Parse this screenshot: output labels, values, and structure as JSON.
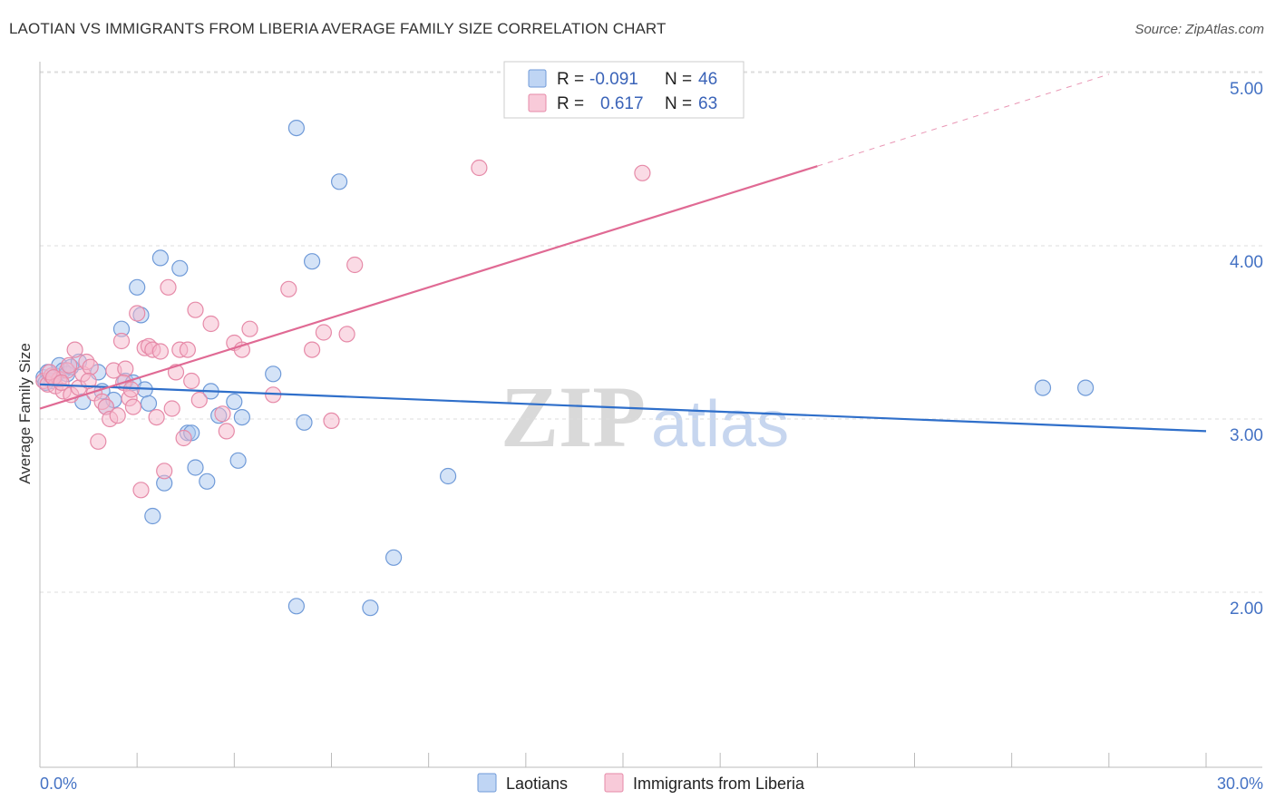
{
  "title": "LAOTIAN VS IMMIGRANTS FROM LIBERIA AVERAGE FAMILY SIZE CORRELATION CHART",
  "source": "Source: ZipAtlas.com",
  "watermark": {
    "zip": "ZIP",
    "atlas": "atlas"
  },
  "colors": {
    "laotians_fill": "#aac7f0",
    "laotians_stroke": "#6f9ad8",
    "laotians_line": "#2f6fca",
    "liberia_fill": "#f5b8cc",
    "liberia_stroke": "#e68aa8",
    "liberia_line": "#e06a94",
    "grid": "#dddddd",
    "tick_label": "#4472c4"
  },
  "legend": {
    "row1": {
      "r_label": "R =",
      "r_value": "-0.091",
      "n_label": "N =",
      "n_value": "46"
    },
    "row2": {
      "r_label": "R =",
      "r_value": "0.617",
      "n_label": "N =",
      "n_value": "63"
    }
  },
  "chart_data": {
    "type": "scatter",
    "title": "LAOTIAN VS IMMIGRANTS FROM LIBERIA AVERAGE FAMILY SIZE CORRELATION CHART",
    "xlabel": "",
    "ylabel": "Average Family Size",
    "xlim": [
      0,
      30
    ],
    "ylim": [
      1.0,
      5.1
    ],
    "x_tick_labels": [
      {
        "value": 0,
        "label": "0.0%"
      },
      {
        "value": 30,
        "label": "30.0%"
      }
    ],
    "y_ticks": [
      {
        "value": 2.0,
        "label": "2.00"
      },
      {
        "value": 3.0,
        "label": "3.00"
      },
      {
        "value": 4.0,
        "label": "4.00"
      },
      {
        "value": 5.0,
        "label": "5.00"
      }
    ],
    "legend_position": "top-center",
    "series": [
      {
        "name": "Laotians",
        "r": -0.091,
        "n": 46,
        "trend": {
          "x0": 0.0,
          "y0": 3.2,
          "x1": 30.0,
          "y1": 2.93
        },
        "points": [
          [
            0.1,
            3.24
          ],
          [
            0.2,
            3.27
          ],
          [
            0.3,
            3.22
          ],
          [
            0.4,
            3.25
          ],
          [
            0.5,
            3.31
          ],
          [
            0.6,
            3.28
          ],
          [
            0.7,
            3.26
          ],
          [
            0.8,
            3.3
          ],
          [
            1.0,
            3.33
          ],
          [
            1.1,
            3.1
          ],
          [
            1.5,
            3.27
          ],
          [
            1.6,
            3.16
          ],
          [
            1.7,
            3.07
          ],
          [
            1.9,
            3.11
          ],
          [
            2.1,
            3.52
          ],
          [
            2.2,
            3.22
          ],
          [
            2.4,
            3.21
          ],
          [
            2.5,
            3.76
          ],
          [
            2.6,
            3.6
          ],
          [
            2.7,
            3.17
          ],
          [
            2.8,
            3.09
          ],
          [
            2.9,
            2.44
          ],
          [
            3.1,
            3.93
          ],
          [
            3.2,
            2.63
          ],
          [
            3.6,
            3.87
          ],
          [
            3.8,
            2.92
          ],
          [
            3.9,
            2.92
          ],
          [
            4.0,
            2.72
          ],
          [
            4.3,
            2.64
          ],
          [
            4.4,
            3.16
          ],
          [
            4.6,
            3.02
          ],
          [
            5.0,
            3.1
          ],
          [
            5.1,
            2.76
          ],
          [
            5.2,
            3.01
          ],
          [
            6.0,
            3.26
          ],
          [
            6.6,
            4.68
          ],
          [
            6.6,
            1.92
          ],
          [
            6.8,
            2.98
          ],
          [
            7.0,
            3.91
          ],
          [
            7.7,
            4.37
          ],
          [
            8.5,
            1.91
          ],
          [
            9.1,
            2.2
          ],
          [
            10.5,
            2.67
          ],
          [
            25.8,
            3.18
          ],
          [
            26.9,
            3.18
          ],
          [
            0.15,
            3.21
          ]
        ]
      },
      {
        "name": "Immigrants from Liberia",
        "r": 0.617,
        "n": 63,
        "trend": {
          "x0": 0.0,
          "y0": 3.06,
          "x1": 20.0,
          "y1": 4.46
        },
        "trend_dashed": {
          "x0": 20.0,
          "y0": 4.46,
          "x1": 27.5,
          "y1": 4.99
        },
        "points": [
          [
            0.1,
            3.22
          ],
          [
            0.2,
            3.2
          ],
          [
            0.3,
            3.25
          ],
          [
            0.4,
            3.19
          ],
          [
            0.5,
            3.23
          ],
          [
            0.6,
            3.16
          ],
          [
            0.7,
            3.28
          ],
          [
            0.8,
            3.14
          ],
          [
            0.9,
            3.4
          ],
          [
            1.0,
            3.18
          ],
          [
            1.1,
            3.26
          ],
          [
            1.2,
            3.33
          ],
          [
            1.3,
            3.3
          ],
          [
            1.4,
            3.15
          ],
          [
            1.5,
            2.87
          ],
          [
            1.6,
            3.1
          ],
          [
            1.7,
            3.07
          ],
          [
            1.8,
            3.0
          ],
          [
            1.9,
            3.28
          ],
          [
            2.0,
            3.02
          ],
          [
            2.1,
            3.45
          ],
          [
            2.2,
            3.29
          ],
          [
            2.3,
            3.12
          ],
          [
            2.4,
            3.07
          ],
          [
            2.5,
            3.61
          ],
          [
            2.6,
            2.59
          ],
          [
            2.7,
            3.41
          ],
          [
            2.8,
            3.42
          ],
          [
            2.9,
            3.4
          ],
          [
            3.0,
            3.01
          ],
          [
            3.1,
            3.39
          ],
          [
            3.2,
            2.7
          ],
          [
            3.3,
            3.76
          ],
          [
            3.4,
            3.06
          ],
          [
            3.5,
            3.27
          ],
          [
            3.6,
            3.4
          ],
          [
            3.7,
            2.89
          ],
          [
            3.8,
            3.4
          ],
          [
            3.9,
            3.22
          ],
          [
            4.0,
            3.63
          ],
          [
            4.1,
            3.11
          ],
          [
            4.4,
            3.55
          ],
          [
            4.7,
            3.03
          ],
          [
            4.8,
            2.93
          ],
          [
            5.0,
            3.44
          ],
          [
            5.2,
            3.4
          ],
          [
            5.4,
            3.52
          ],
          [
            6.0,
            3.14
          ],
          [
            6.4,
            3.75
          ],
          [
            7.0,
            3.4
          ],
          [
            7.3,
            3.5
          ],
          [
            7.5,
            2.99
          ],
          [
            7.9,
            3.49
          ],
          [
            8.1,
            3.89
          ],
          [
            11.3,
            4.45
          ],
          [
            15.5,
            4.42
          ],
          [
            0.25,
            3.27
          ],
          [
            0.35,
            3.24
          ],
          [
            0.55,
            3.21
          ],
          [
            0.75,
            3.31
          ],
          [
            1.25,
            3.22
          ],
          [
            2.15,
            3.21
          ],
          [
            2.35,
            3.17
          ]
        ]
      }
    ]
  },
  "bottom_legend": {
    "laotians": "Laotians",
    "liberia": "Immigrants from Liberia"
  }
}
